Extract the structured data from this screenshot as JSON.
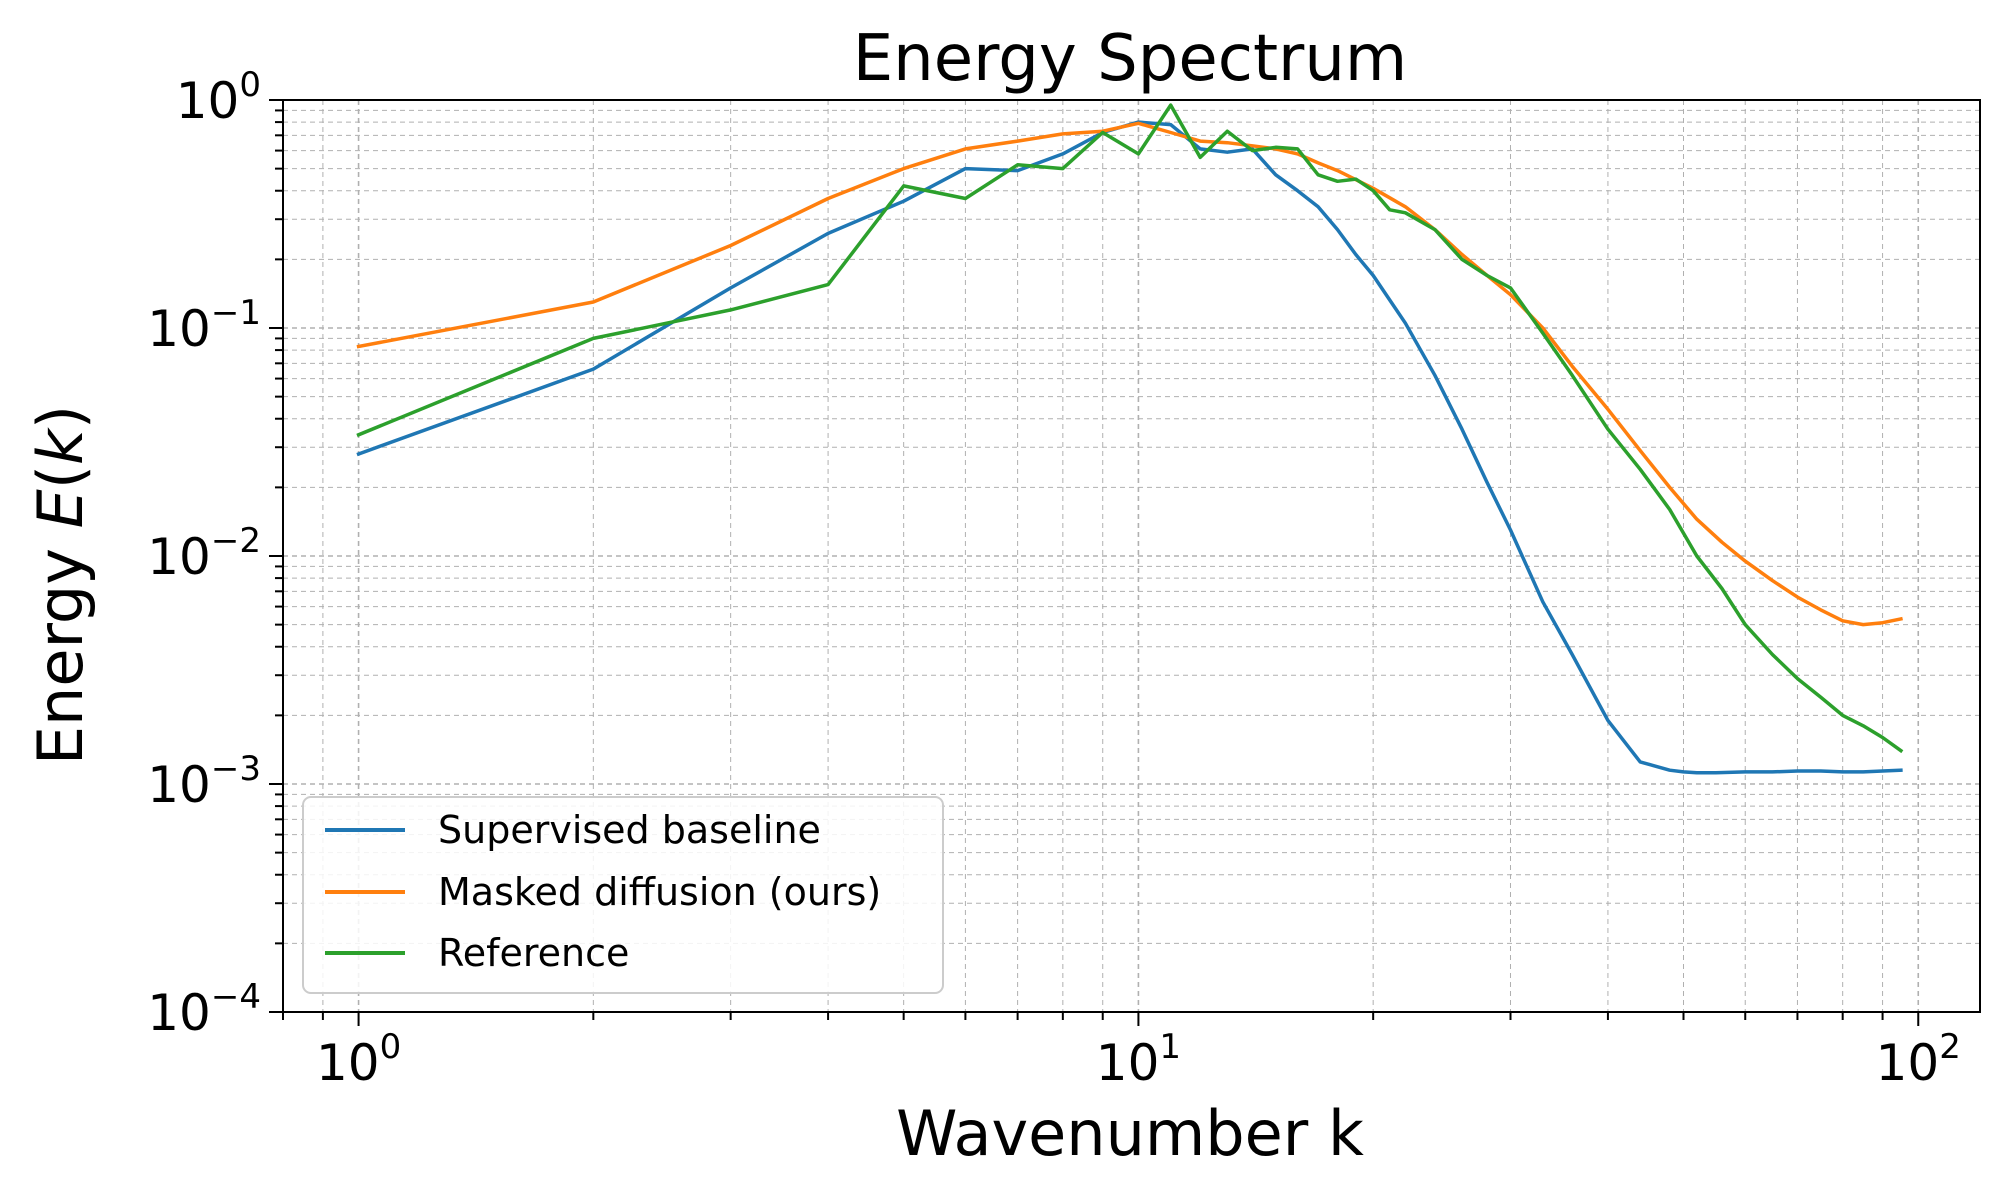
{
  "chart_data": {
    "type": "line",
    "title": "Energy Spectrum",
    "xlabel": "Wavenumber k",
    "ylabel_prefix": "Energy ",
    "ylabel_symbol": "E",
    "ylabel_paren_open": "(",
    "ylabel_var": "k",
    "ylabel_paren_close": ")",
    "x_scale": "log",
    "y_scale": "log",
    "xlim": [
      0.8,
      120
    ],
    "ylim": [
      0.0001,
      1
    ],
    "grid": true,
    "x_ticks": [
      {
        "value": 1,
        "base": "10",
        "exp": "0"
      },
      {
        "value": 10,
        "base": "10",
        "exp": "1"
      },
      {
        "value": 100,
        "base": "10",
        "exp": "2"
      }
    ],
    "y_ticks": [
      {
        "value": 1,
        "base": "10",
        "exp": "0"
      },
      {
        "value": 0.1,
        "base": "10",
        "exp": "−1"
      },
      {
        "value": 0.01,
        "base": "10",
        "exp": "−2"
      },
      {
        "value": 0.001,
        "base": "10",
        "exp": "−3"
      },
      {
        "value": 0.0001,
        "base": "10",
        "exp": "−4"
      }
    ],
    "legend_position": "lower-left",
    "series": [
      {
        "name": "Supervised baseline",
        "color": "#1f77b4",
        "x": [
          1,
          2,
          3,
          4,
          5,
          6,
          7,
          8,
          9,
          10,
          11,
          12,
          13,
          14,
          15,
          16,
          17,
          18,
          19,
          20,
          22,
          24,
          26,
          28,
          30,
          33,
          36,
          40,
          44,
          48,
          50,
          52,
          55,
          60,
          65,
          70,
          75,
          80,
          85,
          90,
          95
        ],
        "y": [
          0.028,
          0.066,
          0.15,
          0.26,
          0.36,
          0.5,
          0.49,
          0.58,
          0.72,
          0.8,
          0.78,
          0.61,
          0.59,
          0.61,
          0.47,
          0.4,
          0.34,
          0.27,
          0.21,
          0.17,
          0.105,
          0.062,
          0.036,
          0.021,
          0.013,
          0.0063,
          0.0037,
          0.0019,
          0.00125,
          0.00115,
          0.00113,
          0.00112,
          0.00112,
          0.00113,
          0.00113,
          0.00114,
          0.00114,
          0.00113,
          0.00113,
          0.00114,
          0.00115
        ]
      },
      {
        "name": "Masked diffusion (ours)",
        "color": "#ff7f0e",
        "x": [
          1,
          2,
          3,
          4,
          5,
          6,
          7,
          8,
          9,
          10,
          11,
          12,
          13,
          14,
          15,
          16,
          17,
          18,
          20,
          22,
          24,
          26,
          28,
          30,
          33,
          36,
          40,
          44,
          48,
          52,
          56,
          60,
          65,
          70,
          75,
          80,
          85,
          90,
          95
        ],
        "y": [
          0.083,
          0.13,
          0.23,
          0.37,
          0.5,
          0.61,
          0.66,
          0.71,
          0.73,
          0.79,
          0.72,
          0.66,
          0.65,
          0.63,
          0.61,
          0.58,
          0.53,
          0.49,
          0.41,
          0.34,
          0.27,
          0.21,
          0.17,
          0.14,
          0.1,
          0.068,
          0.044,
          0.029,
          0.02,
          0.0145,
          0.0115,
          0.0095,
          0.0078,
          0.0066,
          0.0058,
          0.0052,
          0.005,
          0.0051,
          0.0053
        ]
      },
      {
        "name": "Reference",
        "color": "#2ca02c",
        "x": [
          1,
          2,
          3,
          4,
          5,
          6,
          7,
          8,
          9,
          10,
          11,
          12,
          13,
          14,
          15,
          16,
          17,
          18,
          19,
          20,
          21,
          22,
          24,
          26,
          28,
          30,
          33,
          36,
          40,
          44,
          48,
          52,
          56,
          60,
          65,
          70,
          75,
          80,
          85,
          90,
          95
        ],
        "y": [
          0.034,
          0.09,
          0.12,
          0.155,
          0.42,
          0.37,
          0.52,
          0.5,
          0.72,
          0.58,
          0.95,
          0.56,
          0.73,
          0.6,
          0.62,
          0.61,
          0.47,
          0.44,
          0.45,
          0.4,
          0.33,
          0.32,
          0.27,
          0.2,
          0.17,
          0.15,
          0.095,
          0.062,
          0.036,
          0.024,
          0.016,
          0.01,
          0.0072,
          0.005,
          0.0037,
          0.0029,
          0.0024,
          0.002,
          0.0018,
          0.0016,
          0.0014
        ]
      }
    ]
  }
}
